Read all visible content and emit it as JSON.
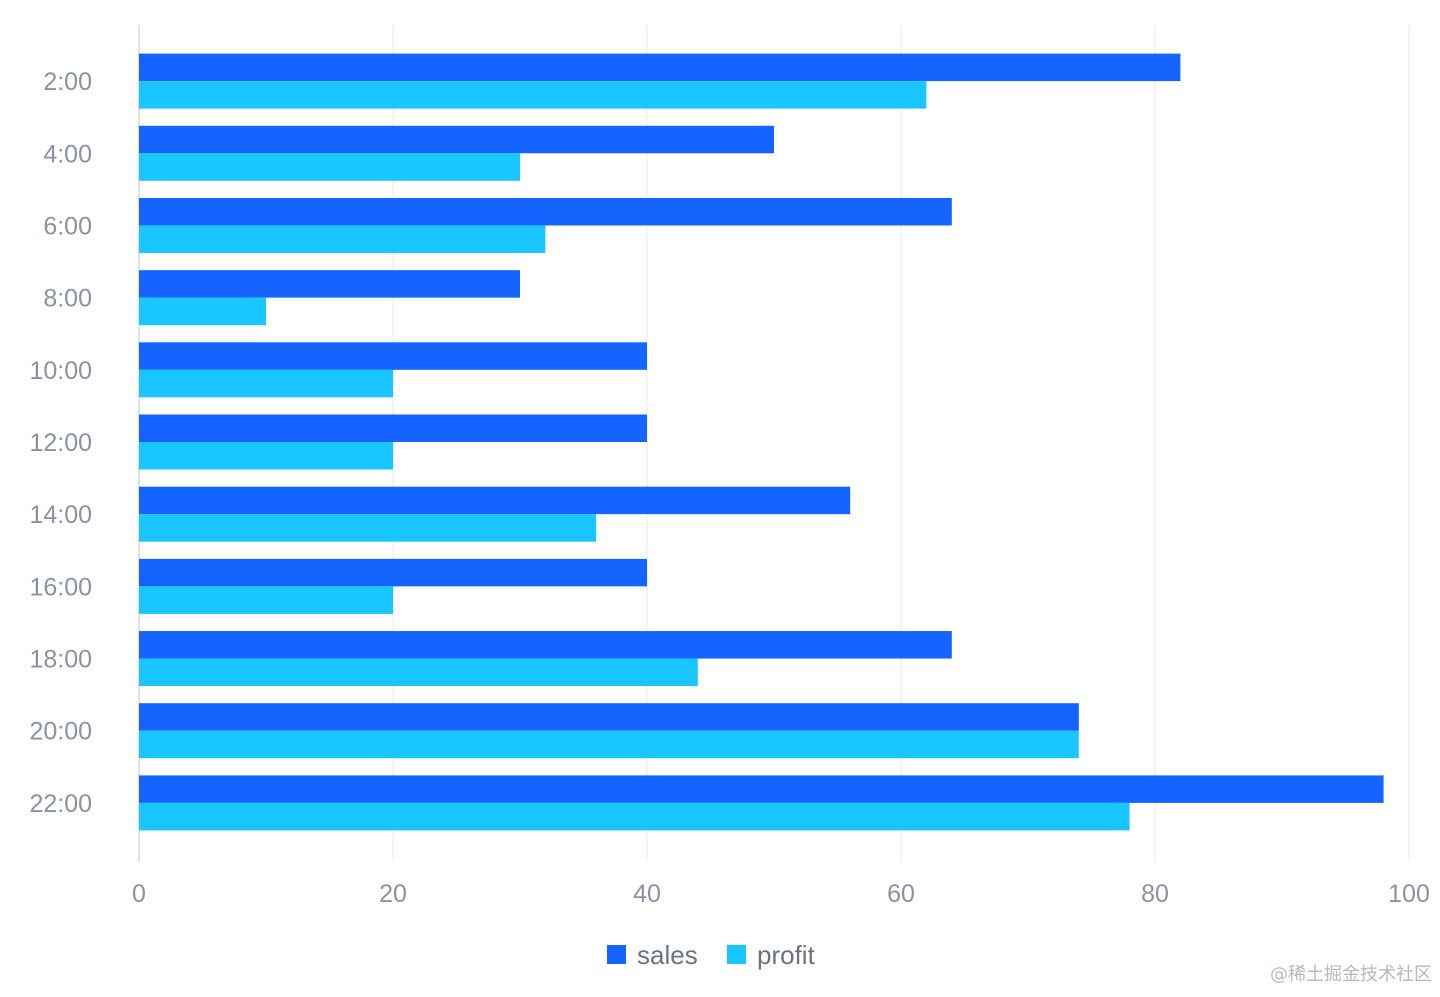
{
  "chart_data": {
    "type": "bar",
    "orientation": "horizontal",
    "categories": [
      "2:00",
      "4:00",
      "6:00",
      "8:00",
      "10:00",
      "12:00",
      "14:00",
      "16:00",
      "18:00",
      "20:00",
      "22:00"
    ],
    "series": [
      {
        "name": "sales",
        "color": "#1664FF",
        "values": [
          82,
          50,
          64,
          30,
          40,
          40,
          56,
          40,
          64,
          74,
          98
        ]
      },
      {
        "name": "profit",
        "color": "#1AC6FF",
        "values": [
          62,
          30,
          32,
          10,
          20,
          20,
          36,
          20,
          44,
          74,
          78
        ]
      }
    ],
    "xlim": [
      0,
      100
    ],
    "xticks": [
      0,
      20,
      40,
      60,
      80,
      100
    ],
    "grid": true,
    "legend_position": "bottom"
  },
  "watermark": "@稀土掘金技术社区"
}
